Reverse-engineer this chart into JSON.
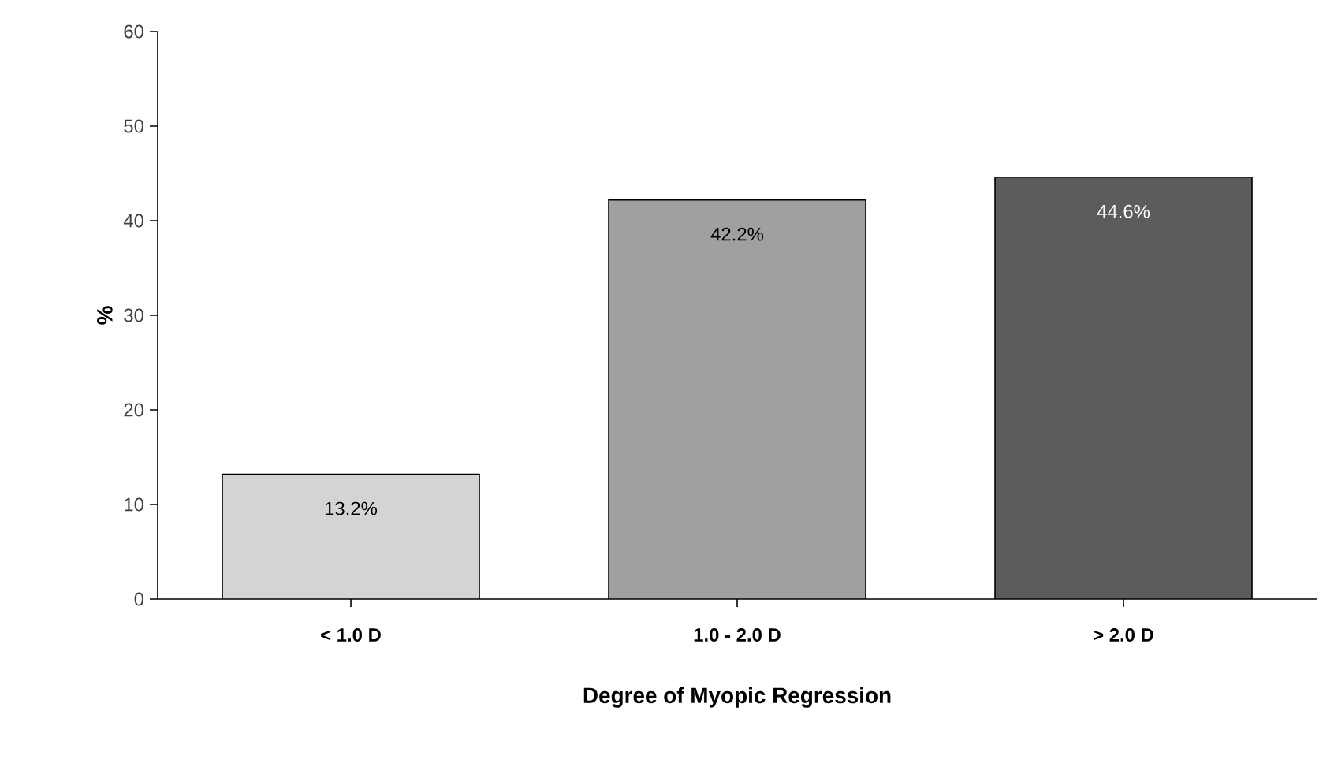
{
  "chart_data": {
    "type": "bar",
    "xlabel": "Degree of Myopic Regression",
    "ylabel": "%",
    "categories": [
      "< 1.0 D",
      "1.0 - 2.0 D",
      "> 2.0 D"
    ],
    "values": [
      13.2,
      42.2,
      44.6
    ],
    "colors": [
      "#d4d4d4",
      "#a0a0a0",
      "#5c5c5c"
    ],
    "value_labels": [
      "13.2%",
      "42.2%",
      "44.6%"
    ],
    "ylim": [
      0,
      60
    ],
    "yticks": [
      0,
      10,
      20,
      30,
      40,
      50,
      60
    ],
    "grid": false
  }
}
